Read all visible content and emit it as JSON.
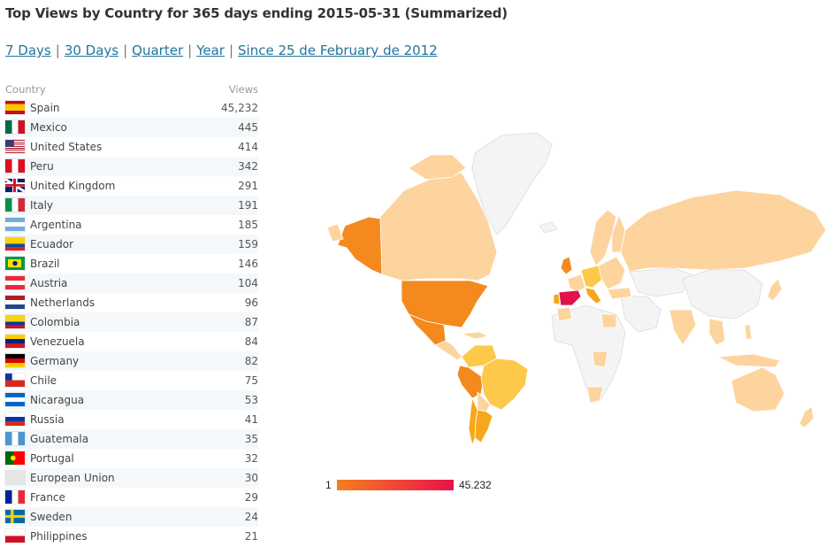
{
  "title": "Top Views by Country for 365 days ending 2015-05-31 (Summarized)",
  "periods": [
    {
      "label": "7 Days"
    },
    {
      "label": "30 Days"
    },
    {
      "label": "Quarter"
    },
    {
      "label": "Year"
    },
    {
      "label": "Since 25 de February de 2012"
    }
  ],
  "period_separator": "|",
  "table": {
    "col_country": "Country",
    "col_views": "Views",
    "rows": [
      {
        "country": "Spain",
        "views": "45,232",
        "flag": "spain"
      },
      {
        "country": "Mexico",
        "views": "445",
        "flag": "mexico"
      },
      {
        "country": "United States",
        "views": "414",
        "flag": "usa"
      },
      {
        "country": "Peru",
        "views": "342",
        "flag": "peru"
      },
      {
        "country": "United Kingdom",
        "views": "291",
        "flag": "uk"
      },
      {
        "country": "Italy",
        "views": "191",
        "flag": "italy"
      },
      {
        "country": "Argentina",
        "views": "185",
        "flag": "argentina"
      },
      {
        "country": "Ecuador",
        "views": "159",
        "flag": "ecuador"
      },
      {
        "country": "Brazil",
        "views": "146",
        "flag": "brazil"
      },
      {
        "country": "Austria",
        "views": "104",
        "flag": "austria"
      },
      {
        "country": "Netherlands",
        "views": "96",
        "flag": "netherlands"
      },
      {
        "country": "Colombia",
        "views": "87",
        "flag": "colombia"
      },
      {
        "country": "Venezuela",
        "views": "84",
        "flag": "venezuela"
      },
      {
        "country": "Germany",
        "views": "82",
        "flag": "germany"
      },
      {
        "country": "Chile",
        "views": "75",
        "flag": "chile"
      },
      {
        "country": "Nicaragua",
        "views": "53",
        "flag": "nicaragua"
      },
      {
        "country": "Russia",
        "views": "41",
        "flag": "russia"
      },
      {
        "country": "Guatemala",
        "views": "35",
        "flag": "guatemala"
      },
      {
        "country": "Portugal",
        "views": "32",
        "flag": "portugal"
      },
      {
        "country": "European Union",
        "views": "30",
        "flag": "eu"
      },
      {
        "country": "France",
        "views": "29",
        "flag": "france"
      },
      {
        "country": "Sweden",
        "views": "24",
        "flag": "sweden"
      },
      {
        "country": "Philippines",
        "views": "21",
        "flag": "philippines"
      }
    ]
  },
  "legend": {
    "min": "1",
    "max": "45.232"
  },
  "colors": {
    "link": "#21759b",
    "scale_low": "#f57f20",
    "scale_high": "#e8114b",
    "map_none": "#f4f4f4",
    "map_light": "#fdd49e",
    "map_yellow": "#fdc94a",
    "map_mid": "#f7a71c",
    "map_orange": "#f48a1e",
    "map_top": "#e0124c"
  }
}
